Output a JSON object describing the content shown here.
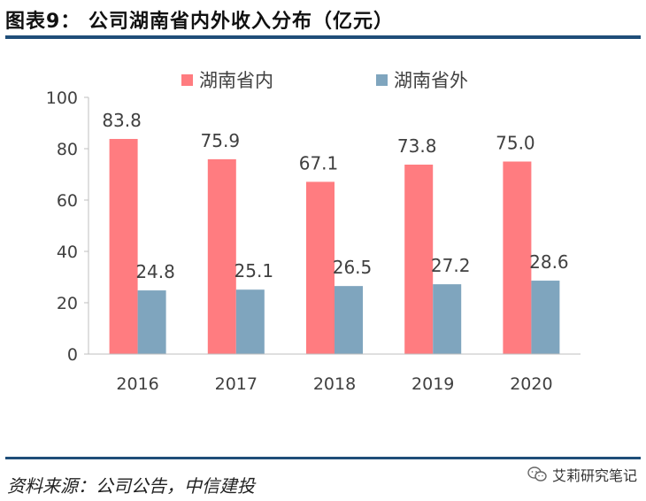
{
  "figure": {
    "title": "图表9： 公司湖南省内外收入分布（亿元）",
    "source": "资料来源：公司公告，中信建投",
    "brand": "艾莉研究笔记"
  },
  "colors": {
    "series1": "#FF7C80",
    "series2": "#7FA5BE",
    "axis": "#bfbfbf",
    "text": "#404040",
    "accent": "#1f4e79"
  },
  "chart_data": {
    "type": "bar",
    "title": "公司湖南省内外收入分布（亿元）",
    "categories": [
      "2016",
      "2017",
      "2018",
      "2019",
      "2020"
    ],
    "series": [
      {
        "name": "湖南省内",
        "values": [
          83.8,
          75.9,
          67.1,
          73.8,
          75.0
        ],
        "labels": [
          "83.8",
          "75.9",
          "67.1",
          "73.8",
          "75.0"
        ]
      },
      {
        "name": "湖南省外",
        "values": [
          24.8,
          25.1,
          26.5,
          27.2,
          28.6
        ],
        "labels": [
          "24.8",
          "25.1",
          "26.5",
          "27.2",
          "28.6"
        ]
      }
    ],
    "ylim": [
      0,
      100
    ],
    "yticks": [
      0,
      20,
      40,
      60,
      80,
      100
    ],
    "legend_position": "top",
    "grid": false,
    "xlabel": "",
    "ylabel": ""
  }
}
